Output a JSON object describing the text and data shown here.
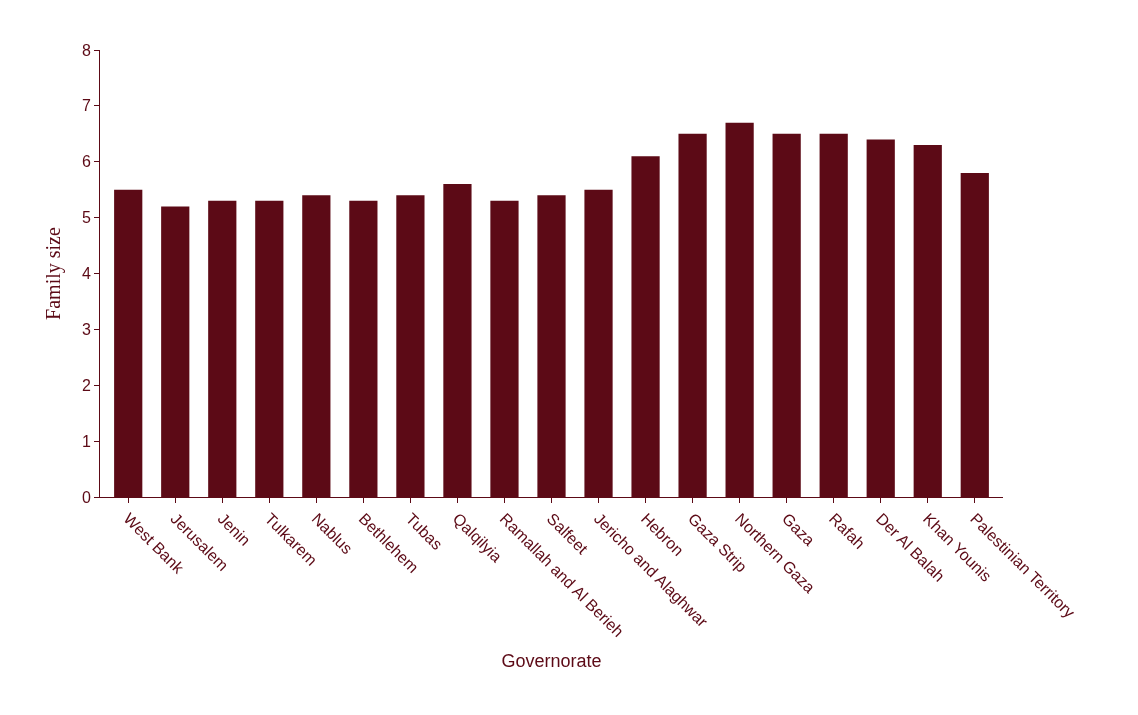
{
  "chart_data": {
    "type": "bar",
    "xlabel": "Governorate",
    "ylabel": "Family size",
    "categories": [
      "West Bank",
      "Jerusalem",
      "Jenin",
      "Tulkarem",
      "Nablus",
      "Bethlehem",
      "Tubas",
      "Qalqilyia",
      "Ramallah and Al Berieh",
      "Salfeet",
      "Jericho and Alaghwar",
      "Hebron",
      "Gaza Strip",
      "Northern Gaza",
      "Gaza",
      "Rafah",
      "Der Al Balah",
      "Khan Younis",
      "Palestinian Territory"
    ],
    "values": [
      5.5,
      5.2,
      5.3,
      5.3,
      5.4,
      5.3,
      5.4,
      5.6,
      5.3,
      5.4,
      5.5,
      6.1,
      6.5,
      6.7,
      6.5,
      6.5,
      6.4,
      6.3,
      5.8
    ],
    "color": "#5c0a16",
    "ylim": [
      0,
      8
    ],
    "yticks": [
      0,
      1,
      2,
      3,
      4,
      5,
      6,
      7,
      8
    ],
    "legend": false
  }
}
